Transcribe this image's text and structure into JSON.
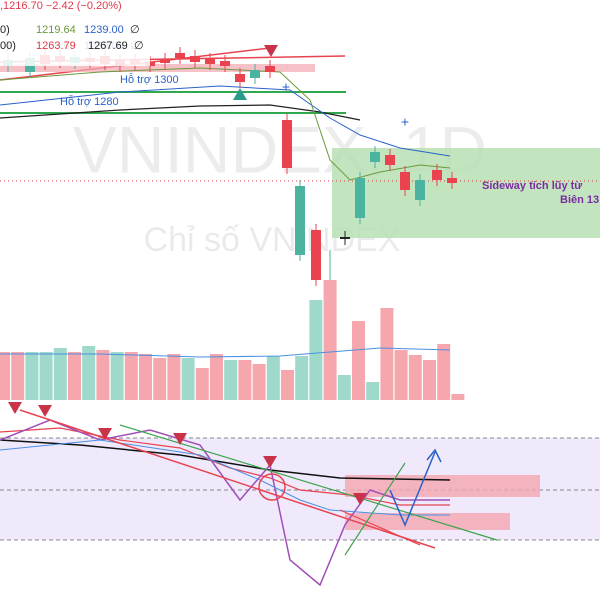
{
  "header": {
    "price_line": ",1216.70  −2.42 (−0.20%)",
    "ma_line_1": {
      "prefix": "0)",
      "a": "1219.64",
      "b": "1239.00",
      "c": "∅"
    },
    "ma_line_2": {
      "prefix": "00)",
      "a": "1263.79",
      "b": "1267.69",
      "c": "∅"
    }
  },
  "chart": {
    "watermark": "VNINDEX, 1D",
    "subtitle": "Chỉ số VNINDEX",
    "support_1": "Hỗ trợ 1300",
    "support_2": "Hỗ trợ 1280",
    "note_1": "Sideway tích lũy từ",
    "note_2": "Biên 13"
  }
}
